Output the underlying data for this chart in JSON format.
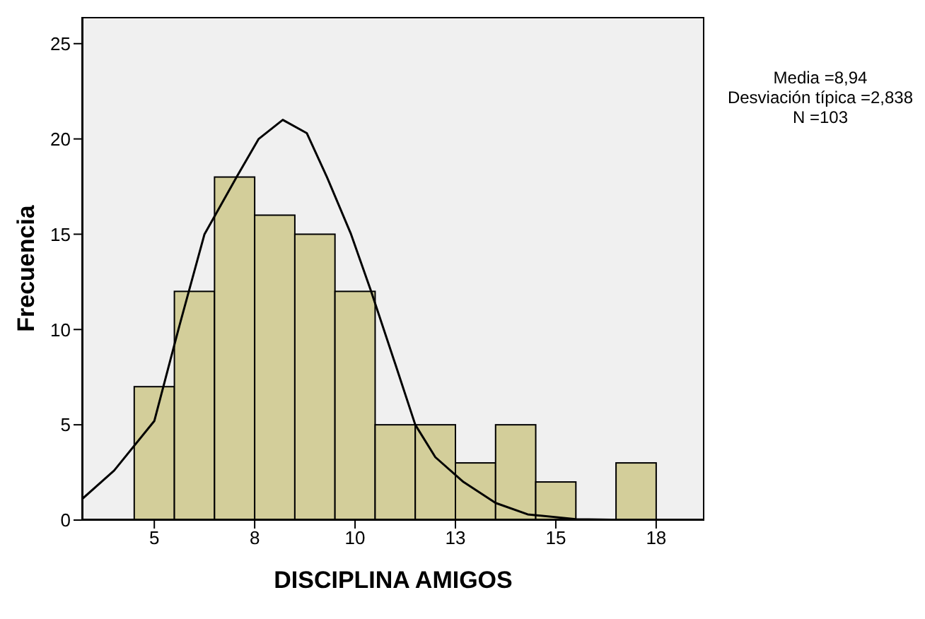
{
  "chart_data": {
    "type": "histogram",
    "xlabel": "DISCIPLINA  AMIGOS",
    "ylabel": "Frecuencia",
    "bins": [
      4.5,
      5.5,
      6.5,
      7.5,
      8.5,
      9.5,
      10.5,
      11.5,
      12.5,
      13.5,
      14.5,
      15.5,
      16.5,
      17.5
    ],
    "values": [
      7,
      12,
      18,
      16,
      15,
      12,
      5,
      5,
      3,
      5,
      2,
      0,
      3
    ],
    "color": "#d3ce9a",
    "series": [
      {
        "type": "line",
        "color": "#000000",
        "x": [
          3.2,
          4,
          5,
          5.6,
          6.25,
          7.05,
          7.6,
          8.2,
          8.8,
          9.3,
          9.9,
          10.4,
          11,
          11.5,
          12,
          12.7,
          13.5,
          14.3,
          15.5,
          17,
          18.7
        ],
        "values": [
          1.1,
          2.6,
          5.2,
          10,
          15,
          18,
          20,
          21,
          20.3,
          18,
          15,
          12,
          8.2,
          5,
          3.3,
          2,
          0.9,
          0.3,
          0.05,
          0,
          0
        ]
      }
    ],
    "xlim": [
      3.2,
      18.7
    ],
    "xticks": [
      5,
      {
        "value": 7.5,
        "label": "8"
      },
      10,
      {
        "value": 12.5,
        "label": "13"
      },
      15,
      {
        "value": 17.5,
        "label": "18"
      }
    ],
    "ylim": [
      0,
      26.4
    ],
    "yticks": [
      0,
      5,
      10,
      15,
      20,
      25
    ],
    "grid": false,
    "marker": "none",
    "annotations": [
      "Media =8,94",
      "Desviación típica =2,838",
      "N =103"
    ]
  }
}
